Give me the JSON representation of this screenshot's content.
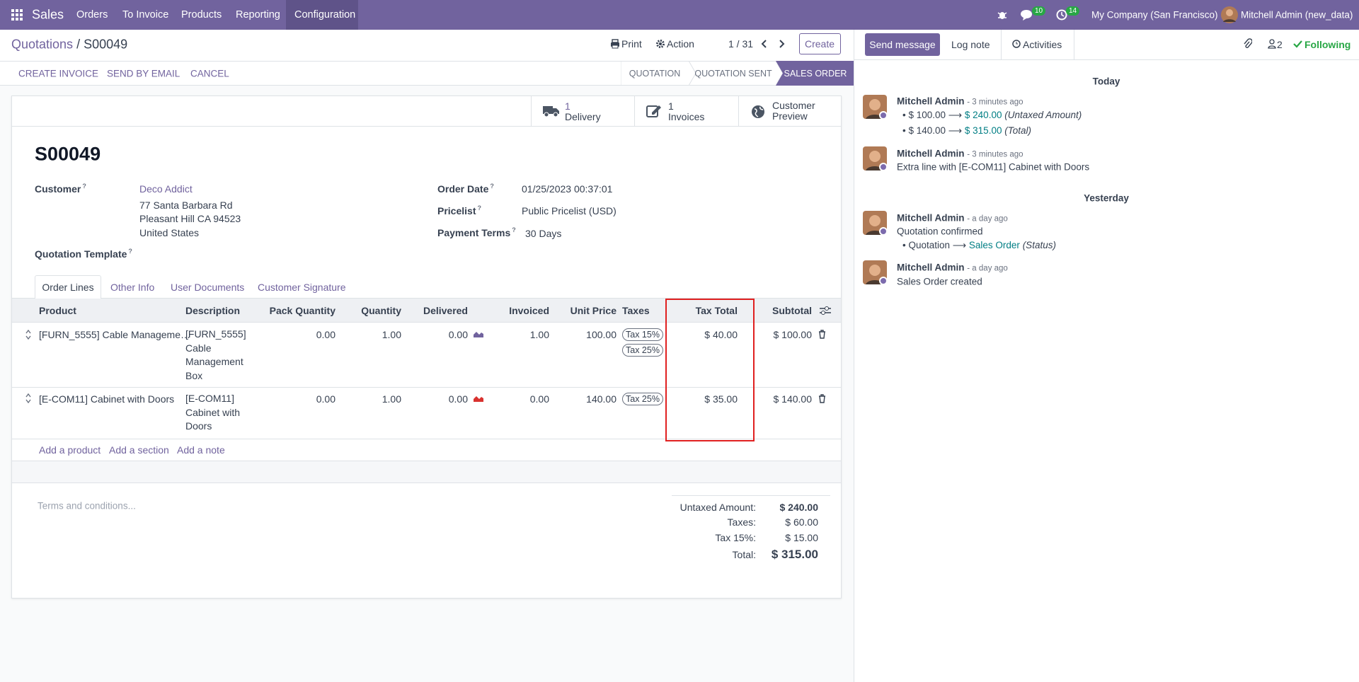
{
  "navbar": {
    "app": "Sales",
    "menu": [
      "Orders",
      "To Invoice",
      "Products",
      "Reporting",
      "Configuration"
    ],
    "message_count": "10",
    "activity_count": "14",
    "company": "My Company (San Francisco)",
    "user": "Mitchell Admin (new_data)"
  },
  "control_panel": {
    "breadcrumb": [
      "Quotations",
      "S00049"
    ],
    "separator": "/",
    "print": "Print",
    "action": "Action",
    "pager": "1 / 31",
    "create": "Create"
  },
  "status_bar": {
    "actions": [
      "CREATE INVOICE",
      "SEND BY EMAIL",
      "CANCEL"
    ],
    "stages": [
      "QUOTATION",
      "QUOTATION SENT",
      "SALES ORDER"
    ]
  },
  "smart_buttons": [
    {
      "count": "1",
      "label": "Delivery"
    },
    {
      "count": "1",
      "label": "Invoices"
    },
    {
      "label": "Customer Preview"
    }
  ],
  "form": {
    "name": "S00049",
    "help_mark": "?",
    "customer": {
      "label": "Customer",
      "value": "Deco Addict",
      "address": [
        "77 Santa Barbara Rd",
        "Pleasant Hill CA 94523",
        "United States"
      ]
    },
    "quotation_template": {
      "label": "Quotation Template"
    },
    "order_date": {
      "label": "Order Date",
      "value": "01/25/2023 00:37:01"
    },
    "pricelist": {
      "label": "Pricelist",
      "value": "Public Pricelist (USD)"
    },
    "payment_terms": {
      "label": "Payment Terms",
      "value": "30 Days"
    }
  },
  "tabs": [
    "Order Lines",
    "Other Info",
    "User Documents",
    "Customer Signature"
  ],
  "order_lines": {
    "columns": [
      "Product",
      "Description",
      "Pack Quantity",
      "Quantity",
      "Delivered",
      "Invoiced",
      "Unit Price",
      "Taxes",
      "Tax Total",
      "Subtotal"
    ],
    "rows": [
      {
        "product": "[FURN_5555] Cable Manageme…",
        "description": "[FURN_5555] Cable Management Box",
        "pack_quantity": "0.00",
        "quantity": "1.00",
        "delivered": "0.00",
        "invoiced": "1.00",
        "unit_price": "100.00",
        "taxes": [
          "Tax 15%",
          "Tax 25%"
        ],
        "tax_total": "$ 40.00",
        "subtotal": "$ 100.00"
      },
      {
        "product": "[E-COM11] Cabinet with Doors",
        "description": "[E-COM11] Cabinet with Doors",
        "pack_quantity": "0.00",
        "quantity": "1.00",
        "delivered": "0.00",
        "invoiced": "0.00",
        "unit_price": "140.00",
        "taxes": [
          "Tax 25%"
        ],
        "tax_total": "$ 35.00",
        "subtotal": "$ 140.00"
      }
    ],
    "add_links": [
      "Add a product",
      "Add a section",
      "Add a note"
    ]
  },
  "terms_placeholder": "Terms and conditions...",
  "totals": [
    {
      "label": "Untaxed Amount:",
      "value": "$ 240.00"
    },
    {
      "label": "Taxes:",
      "value": "$ 60.00"
    },
    {
      "label": "Tax 15%:",
      "value": "$ 15.00"
    },
    {
      "label": "Total:",
      "value": "$ 315.00"
    }
  ],
  "chatter": {
    "send_message": "Send message",
    "log_note": "Log note",
    "activities": "Activities",
    "follower_count": "2",
    "following": "Following",
    "groups": [
      {
        "date": "Today",
        "messages": [
          {
            "author": "Mitchell Admin",
            "time": "- 3 minutes ago",
            "tracking": [
              {
                "old": "$ 100.00",
                "new": "$ 240.00",
                "field": "(Untaxed Amount)"
              },
              {
                "old": "$ 140.00",
                "new": "$ 315.00",
                "field": "(Total)"
              }
            ]
          },
          {
            "author": "Mitchell Admin",
            "time": "- 3 minutes ago",
            "body": "Extra line with [E-COM11] Cabinet with Doors"
          }
        ]
      },
      {
        "date": "Yesterday",
        "messages": [
          {
            "author": "Mitchell Admin",
            "time": "- a day ago",
            "body": "Quotation confirmed",
            "tracking": [
              {
                "old": "Quotation",
                "new": "Sales Order",
                "field": "(Status)"
              }
            ]
          },
          {
            "author": "Mitchell Admin",
            "time": "- a day ago",
            "body": "Sales Order created"
          }
        ]
      }
    ]
  }
}
